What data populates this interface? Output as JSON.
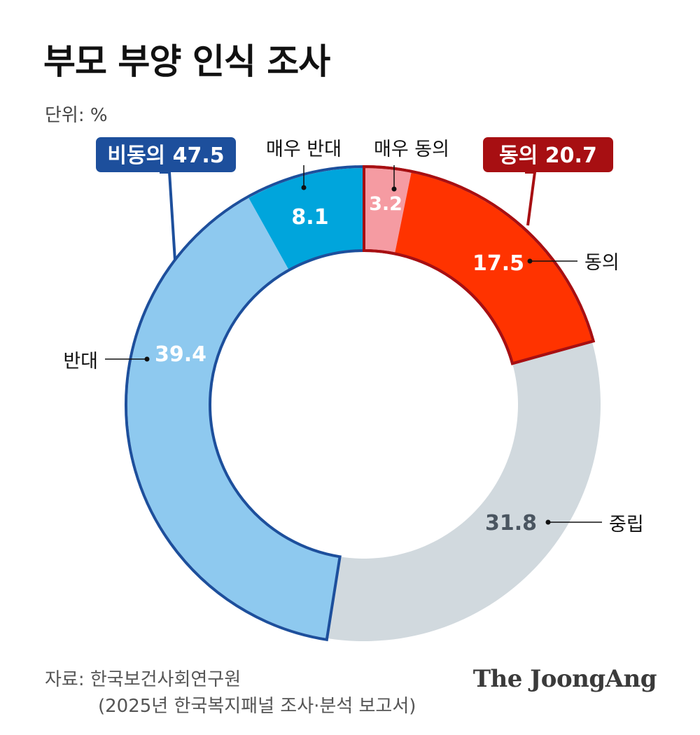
{
  "title": "부모 부양 인식 조사",
  "unit": "단위: %",
  "chart_data": {
    "type": "pie",
    "variant": "donut",
    "title": "부모 부양 인식 조사",
    "unit": "%",
    "order": "clockwise from top",
    "slices": [
      {
        "label": "매우 동의",
        "value": 3.2,
        "color": "#f59ba2"
      },
      {
        "label": "동의",
        "value": 17.5,
        "color": "#ff3300"
      },
      {
        "label": "중립",
        "value": 31.8,
        "color": "#d1d9de"
      },
      {
        "label": "반대",
        "value": 39.4,
        "color": "#8ec9ef"
      },
      {
        "label": "매우 반대",
        "value": 8.1,
        "color": "#00a5dc"
      }
    ],
    "groups": [
      {
        "label": "비동의",
        "value": "47.5",
        "members": [
          "반대",
          "매우 반대"
        ],
        "color": "#1d4f9c"
      },
      {
        "label": "동의",
        "value": "20.7",
        "members": [
          "매우 동의",
          "동의"
        ],
        "color": "#a70f12"
      }
    ]
  },
  "source": {
    "line1": "자료: 한국보건사회연구원",
    "line2": "(2025년 한국복지패널 조사·분석 보고서)"
  },
  "brand": "The JoongAng"
}
